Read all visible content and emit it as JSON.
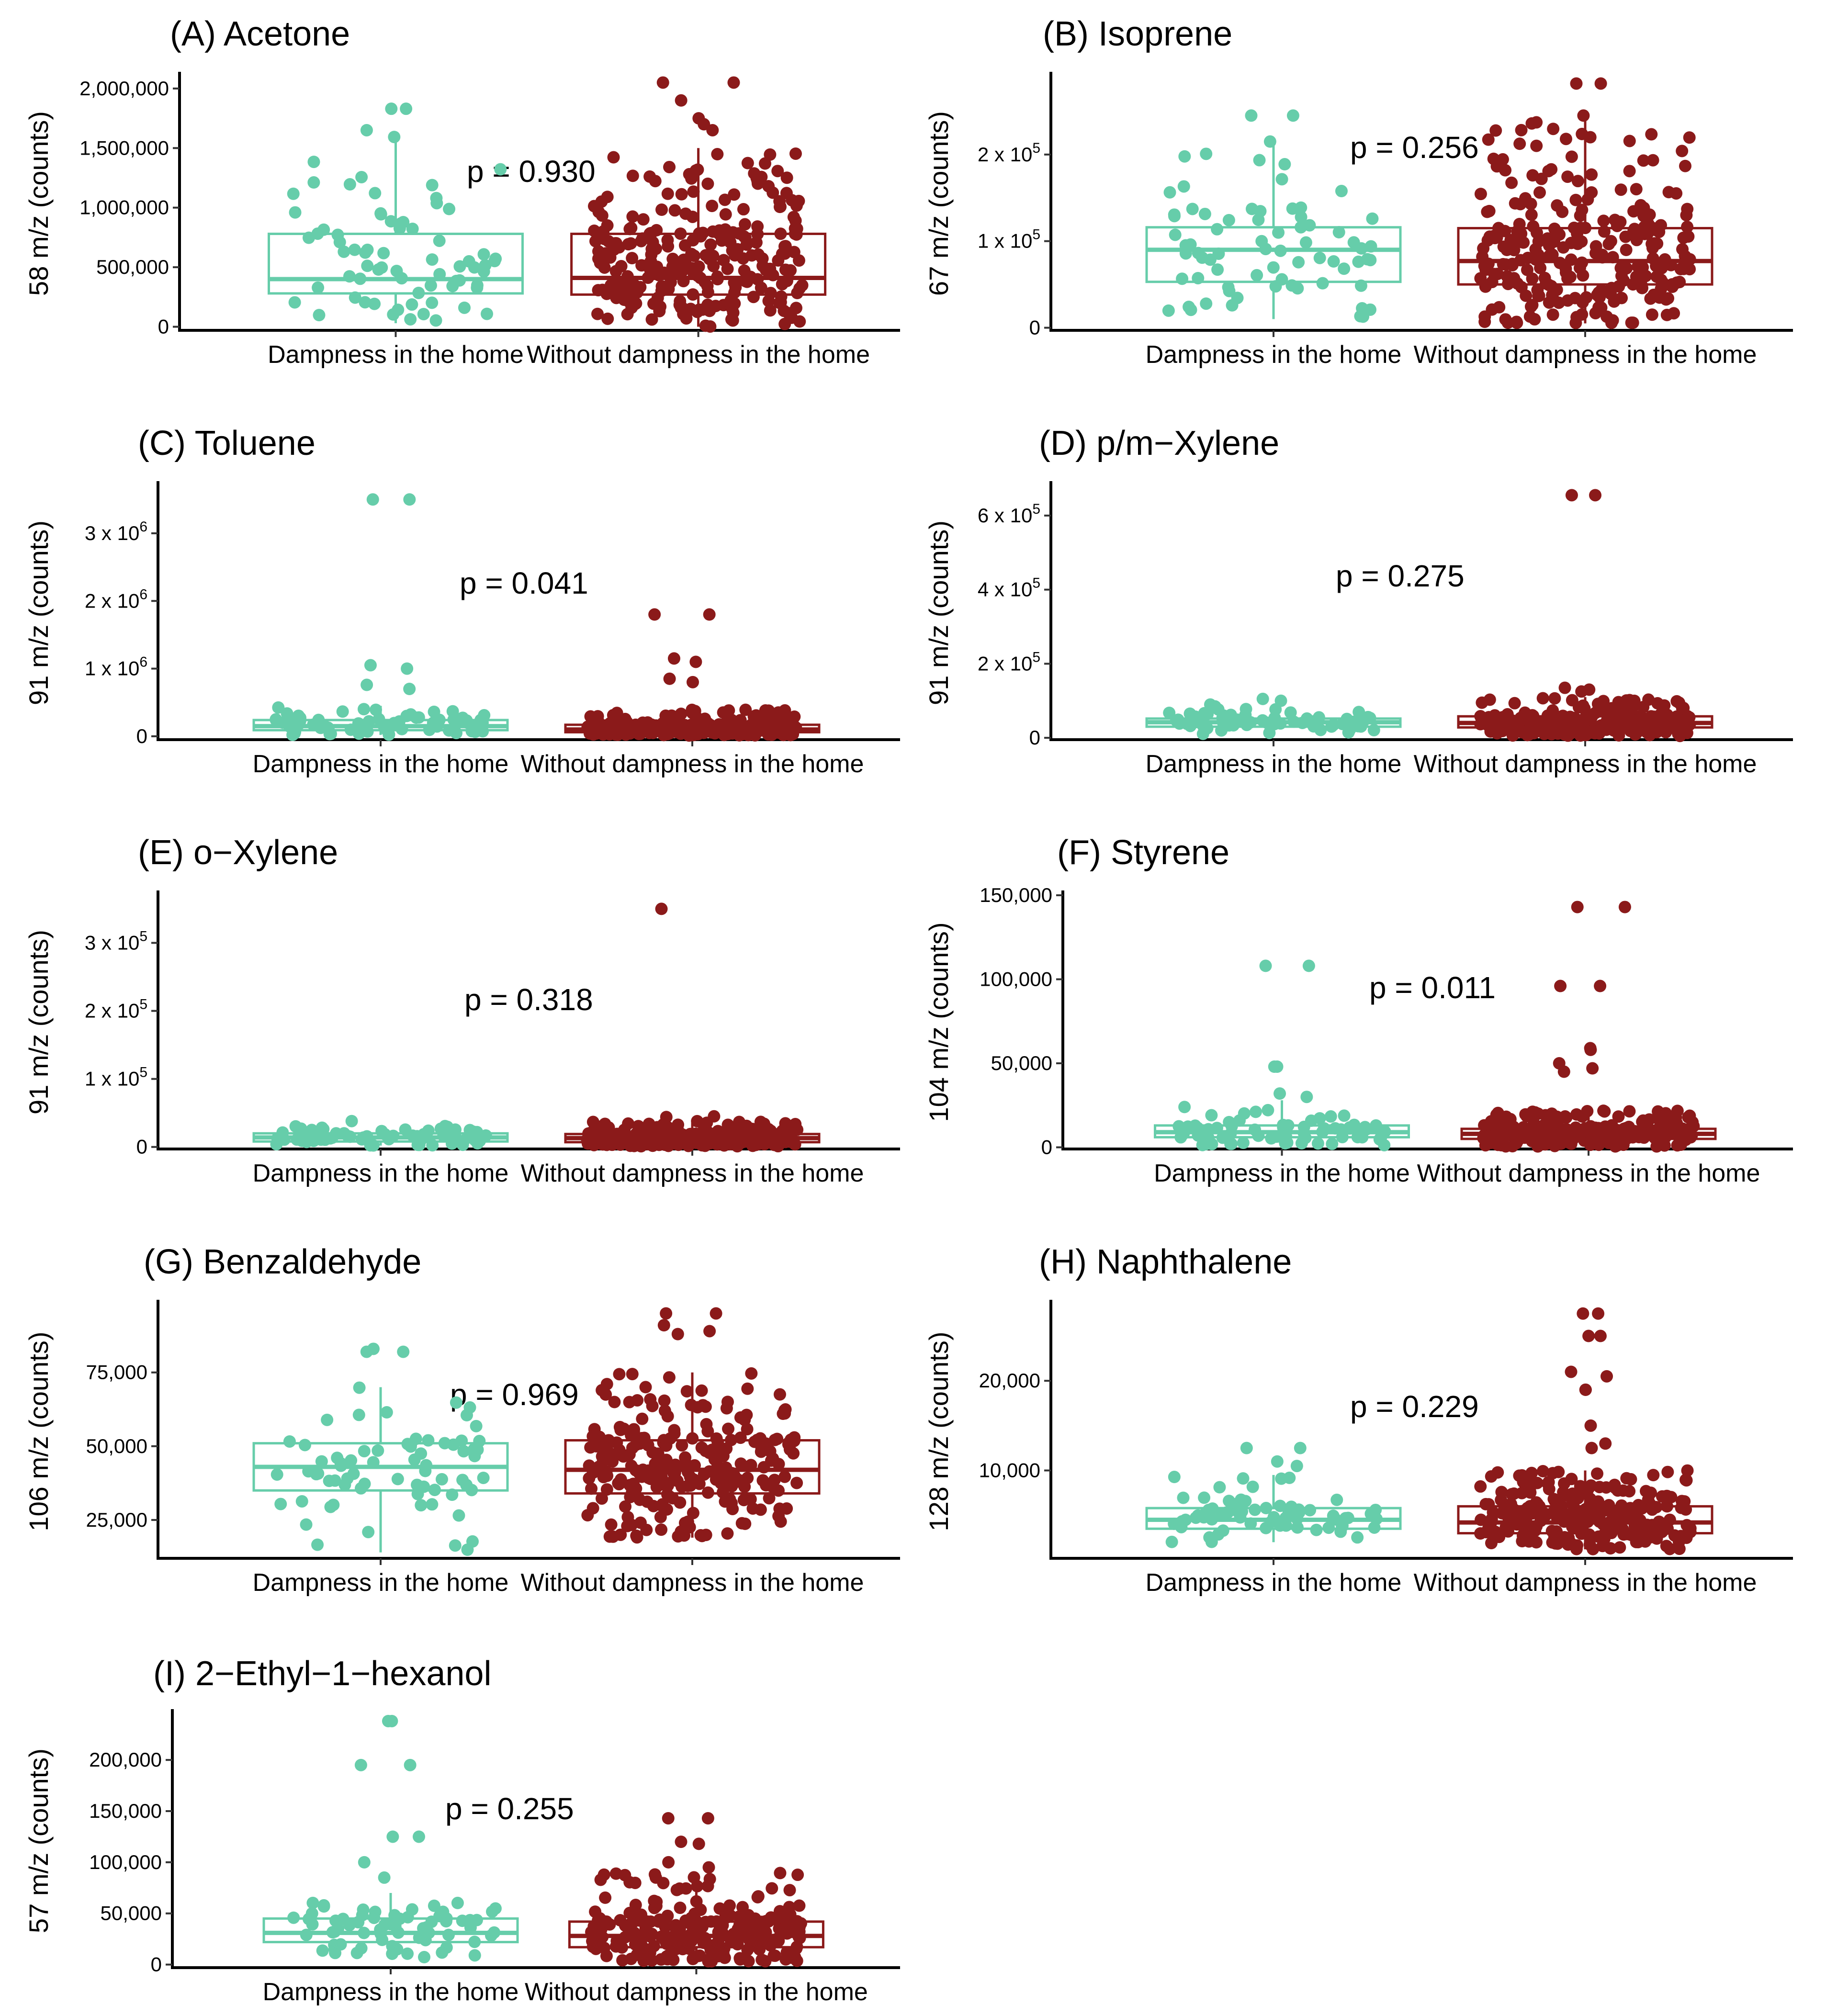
{
  "colors": {
    "damp": "#66cdaa",
    "nodamp": "#8b1a1a"
  },
  "chart_data": [
    {
      "type": "box_jitter",
      "panel": "(A)",
      "title": "Acetone",
      "ylabel": "58 m/z (counts)",
      "ylim": [
        -30000,
        2100000
      ],
      "ticks": [
        0,
        500000,
        1000000,
        1500000,
        2000000
      ],
      "tick_labels": [
        "0",
        "500,000",
        "1,000,000",
        "1,500,000",
        "2,000,000"
      ],
      "p_label": "p = 0.930",
      "categories": [
        "Dampness in the home",
        "Without dampness in the home"
      ],
      "boxes": [
        {
          "whisker_low": 30000,
          "q1": 280000,
          "median": 400000,
          "q3": 780000,
          "whisker_high": 1600000
        },
        {
          "whisker_low": 0,
          "q1": 270000,
          "median": 410000,
          "q3": 780000,
          "whisker_high": 1500000
        }
      ],
      "outliers": [
        [
          1830000,
          1830000,
          1650000
        ],
        [
          2050000,
          2050000,
          1900000,
          1750000,
          1700000,
          1650000
        ]
      ]
    },
    {
      "type": "box_jitter",
      "panel": "(B)",
      "title": "Isoprene",
      "ylabel": "67 m/z (counts)",
      "ylim": [
        -3000,
        290000
      ],
      "ticks": [
        0,
        100000,
        200000
      ],
      "tick_labels": [
        "0",
        "1 x 10⁵",
        "2 x 10⁵"
      ],
      "p_label": "p = 0.256",
      "categories": [
        "Dampness in the home",
        "Without dampness in the home"
      ],
      "boxes": [
        {
          "whisker_low": 10000,
          "q1": 53000,
          "median": 90000,
          "q3": 116000,
          "whisker_high": 210000
        },
        {
          "whisker_low": 5000,
          "q1": 50000,
          "median": 77000,
          "q3": 115000,
          "whisker_high": 240000
        }
      ],
      "outliers": [
        [
          245000,
          245000,
          215000
        ],
        [
          282000,
          282000,
          245000,
          220000,
          218000
        ]
      ]
    },
    {
      "type": "box_jitter",
      "panel": "(C)",
      "title": "Toluene",
      "ylabel": "91 m/z (counts)",
      "ylim": [
        -50000,
        3700000
      ],
      "ticks": [
        0,
        1000000,
        2000000,
        3000000
      ],
      "tick_labels": [
        "0",
        "1 x 10⁶",
        "2 x 10⁶",
        "3 x 10⁶"
      ],
      "p_label": "p = 0.041",
      "categories": [
        "Dampness in the home",
        "Without dampness in the home"
      ],
      "boxes": [
        {
          "whisker_low": 20000,
          "q1": 90000,
          "median": 150000,
          "q3": 240000,
          "whisker_high": 450000
        },
        {
          "whisker_low": 10000,
          "q1": 60000,
          "median": 100000,
          "q3": 170000,
          "whisker_high": 400000
        }
      ],
      "outliers": [
        [
          3500000,
          3500000,
          1050000,
          1000000,
          760000,
          700000
        ],
        [
          1800000,
          1800000,
          1150000,
          1100000,
          850000,
          800000
        ]
      ]
    },
    {
      "type": "box_jitter",
      "panel": "(D)",
      "title": "p/m−Xylene",
      "ylabel": "91 m/z (counts)",
      "ylim": [
        -5000,
        680000
      ],
      "ticks": [
        0,
        200000,
        400000,
        600000
      ],
      "tick_labels": [
        "0",
        "2 x 10⁵",
        "4 x 10⁵",
        "6 x 10⁵"
      ],
      "p_label": "p = 0.275",
      "categories": [
        "Dampness in the home",
        "Without dampness in the home"
      ],
      "boxes": [
        {
          "whisker_low": 10000,
          "q1": 30000,
          "median": 42000,
          "q3": 52000,
          "whisker_high": 90000
        },
        {
          "whisker_low": 5000,
          "q1": 28000,
          "median": 40000,
          "q3": 58000,
          "whisker_high": 110000
        }
      ],
      "outliers": [
        [
          105000,
          100000
        ],
        [
          655000,
          655000,
          135000,
          130000,
          125000
        ]
      ]
    },
    {
      "type": "box_jitter",
      "panel": "(E)",
      "title": "o−Xylene",
      "ylabel": "91 m/z (counts)",
      "ylim": [
        -3000,
        370000
      ],
      "ticks": [
        0,
        100000,
        200000,
        300000
      ],
      "tick_labels": [
        "0",
        "1 x 10⁵",
        "2 x 10⁵",
        "3 x 10⁵"
      ],
      "p_label": "p = 0.318",
      "categories": [
        "Dampness in the home",
        "Without dampness in the home"
      ],
      "boxes": [
        {
          "whisker_low": 2000,
          "q1": 8000,
          "median": 14000,
          "q3": 20000,
          "whisker_high": 32000
        },
        {
          "whisker_low": 1000,
          "q1": 7000,
          "median": 13000,
          "q3": 19000,
          "whisker_high": 38000
        }
      ],
      "outliers": [
        [
          38000
        ],
        [
          350000,
          45000,
          44000
        ]
      ]
    },
    {
      "type": "box_jitter",
      "panel": "(F)",
      "title": "Styrene",
      "ylabel": "104 m/z (counts)",
      "ylim": [
        -1000,
        150000
      ],
      "ticks": [
        0,
        50000,
        100000,
        150000
      ],
      "tick_labels": [
        "0",
        "50,000",
        "100,000",
        "150,000"
      ],
      "p_label": "p = 0.011",
      "categories": [
        "Dampness in the home",
        "Without dampness in the home"
      ],
      "boxes": [
        {
          "whisker_low": 1000,
          "q1": 6000,
          "median": 9000,
          "q3": 13000,
          "whisker_high": 28000
        },
        {
          "whisker_low": 500,
          "q1": 5000,
          "median": 8000,
          "q3": 11000,
          "whisker_high": 22000
        }
      ],
      "outliers": [
        [
          108000,
          108000,
          48000,
          48000,
          32000,
          30000
        ],
        [
          143000,
          143000,
          96000,
          96000,
          59000,
          58000,
          50000,
          47000,
          45000
        ]
      ]
    },
    {
      "type": "box_jitter",
      "panel": "(G)",
      "title": "Benzaldehyde",
      "ylabel": "106 m/z (counts)",
      "ylim": [
        12000,
        98000
      ],
      "ticks": [
        25000,
        50000,
        75000
      ],
      "tick_labels": [
        "25,000",
        "50,000",
        "75,000"
      ],
      "p_label": "p = 0.969",
      "categories": [
        "Dampness in the home",
        "Without dampness in the home"
      ],
      "boxes": [
        {
          "whisker_low": 14000,
          "q1": 35000,
          "median": 43000,
          "q3": 51000,
          "whisker_high": 70000
        },
        {
          "whisker_low": 19000,
          "q1": 34000,
          "median": 42000,
          "q3": 52000,
          "whisker_high": 75000
        }
      ],
      "outliers": [
        [
          83000,
          82000,
          82000
        ],
        [
          95000,
          95000,
          91000,
          89000,
          88000
        ]
      ]
    },
    {
      "type": "box_jitter",
      "panel": "(H)",
      "title": "Naphthalene",
      "ylabel": "128 m/z (counts)",
      "ylim": [
        200,
        28500
      ],
      "ticks": [
        10000,
        20000
      ],
      "tick_labels": [
        "10,000",
        "20,000"
      ],
      "p_label": "p = 0.229",
      "categories": [
        "Dampness in the home",
        "Without dampness in the home"
      ],
      "boxes": [
        {
          "whisker_low": 2000,
          "q1": 3500,
          "median": 4500,
          "q3": 5800,
          "whisker_high": 9500
        },
        {
          "whisker_low": 1200,
          "q1": 3000,
          "median": 4200,
          "q3": 6000,
          "whisker_high": 10000
        }
      ],
      "outliers": [
        [
          12500,
          12500,
          11000,
          10500
        ],
        [
          27500,
          27500,
          25000,
          25000,
          21000,
          20500,
          19000,
          19000,
          15000,
          13000,
          12500
        ]
      ]
    },
    {
      "type": "box_jitter",
      "panel": "(I)",
      "title": "2−Ethyl−1−hexanol",
      "ylabel": "57 m/z (counts)",
      "ylim": [
        -3000,
        245000
      ],
      "ticks": [
        0,
        50000,
        100000,
        150000,
        200000
      ],
      "tick_labels": [
        "0",
        "50,000",
        "100,000",
        "150,000",
        "200,000"
      ],
      "p_label": "p = 0.255",
      "categories": [
        "Dampness in the home",
        "Without dampness in the home"
      ],
      "boxes": [
        {
          "whisker_low": 5000,
          "q1": 22000,
          "median": 31000,
          "q3": 45000,
          "whisker_high": 70000
        },
        {
          "whisker_low": 3000,
          "q1": 17000,
          "median": 28000,
          "q3": 42000,
          "whisker_high": 90000
        }
      ],
      "outliers": [
        [
          238000,
          238000,
          195000,
          195000,
          125000,
          125000,
          100000,
          85000
        ],
        [
          143000,
          143000,
          120000,
          118000,
          100000,
          95000
        ]
      ]
    }
  ]
}
